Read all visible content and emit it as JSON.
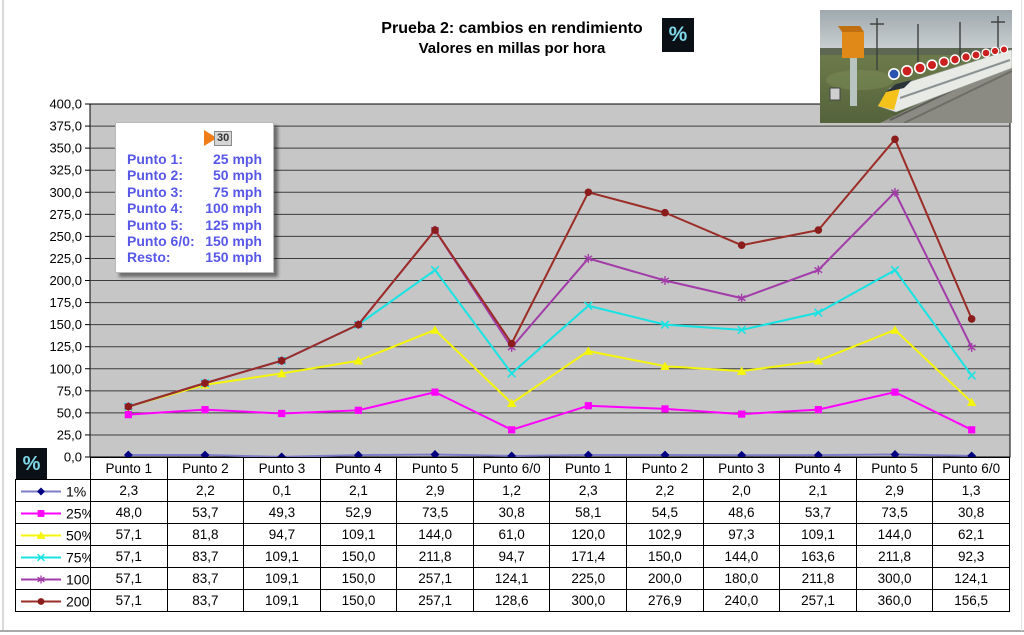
{
  "header": {
    "title": "Prueba 2: cambios en rendimiento",
    "subtitle": "Valores en millas por hora",
    "percent_badge": "%"
  },
  "infobox": {
    "flag_label": "30",
    "items": [
      {
        "label": "Punto 1:",
        "value": "25 mph"
      },
      {
        "label": "Punto 2:",
        "value": "50 mph"
      },
      {
        "label": "Punto 3:",
        "value": "75 mph"
      },
      {
        "label": "Punto 4:",
        "value": "100 mph"
      },
      {
        "label": "Punto 5:",
        "value": "125 mph"
      },
      {
        "label": "Punto 6/0:",
        "value": "150 mph"
      },
      {
        "label": "Resto:",
        "value": "150 mph"
      }
    ],
    "text_color": "#5757e8"
  },
  "corner_badge": "%",
  "chart_data": {
    "type": "line",
    "title": "Prueba 2: cambios en rendimiento",
    "subtitle": "Valores en millas por hora",
    "categories": [
      "Punto 1",
      "Punto 2",
      "Punto 3",
      "Punto 4",
      "Punto 5",
      "Punto 6/0",
      "Punto 1",
      "Punto 2",
      "Punto 3",
      "Punto 4",
      "Punto 5",
      "Punto 6/0"
    ],
    "ylim": [
      0,
      400
    ],
    "ytick_step": 25,
    "grid": "horizontal",
    "legend_position": "table-left",
    "plot_bg": "#c6c6c6",
    "gridline_color": "#3d3d3d",
    "decimal_separator": ",",
    "series": [
      {
        "name": "1%",
        "marker": "diamond",
        "color": "#7e7ec8",
        "marker_color": "#000080",
        "values": [
          2.3,
          2.2,
          0.1,
          2.1,
          2.9,
          1.2,
          2.3,
          2.2,
          2.0,
          2.1,
          2.9,
          1.3
        ]
      },
      {
        "name": "25%",
        "marker": "square",
        "color": "#ff00ff",
        "marker_color": "#ff00ff",
        "values": [
          48.0,
          53.7,
          49.3,
          52.9,
          73.5,
          30.8,
          58.1,
          54.5,
          48.6,
          53.7,
          73.5,
          30.8
        ]
      },
      {
        "name": "50%",
        "marker": "triangle",
        "color": "#f5f50a",
        "marker_color": "#f5f50a",
        "values": [
          57.1,
          81.8,
          94.7,
          109.1,
          144.0,
          61.0,
          120.0,
          102.9,
          97.3,
          109.1,
          144.0,
          62.1
        ]
      },
      {
        "name": "75%",
        "marker": "x",
        "color": "#17e3e3",
        "marker_color": "#17e3e3",
        "values": [
          57.1,
          83.7,
          109.1,
          150.0,
          211.8,
          94.7,
          171.4,
          150.0,
          144.0,
          163.6,
          211.8,
          92.3
        ]
      },
      {
        "name": "100%",
        "marker": "star",
        "color": "#a23ca8",
        "marker_color": "#a23ca8",
        "values": [
          57.1,
          83.7,
          109.1,
          150.0,
          257.1,
          124.1,
          225.0,
          200.0,
          180.0,
          211.8,
          300.0,
          124.1
        ]
      },
      {
        "name": "200%",
        "marker": "circle",
        "color": "#9b2d27",
        "marker_color": "#8b1c1c",
        "values": [
          57.1,
          83.7,
          109.1,
          150.0,
          257.1,
          128.6,
          300.0,
          276.9,
          240.0,
          257.1,
          360.0,
          156.5
        ]
      }
    ]
  }
}
